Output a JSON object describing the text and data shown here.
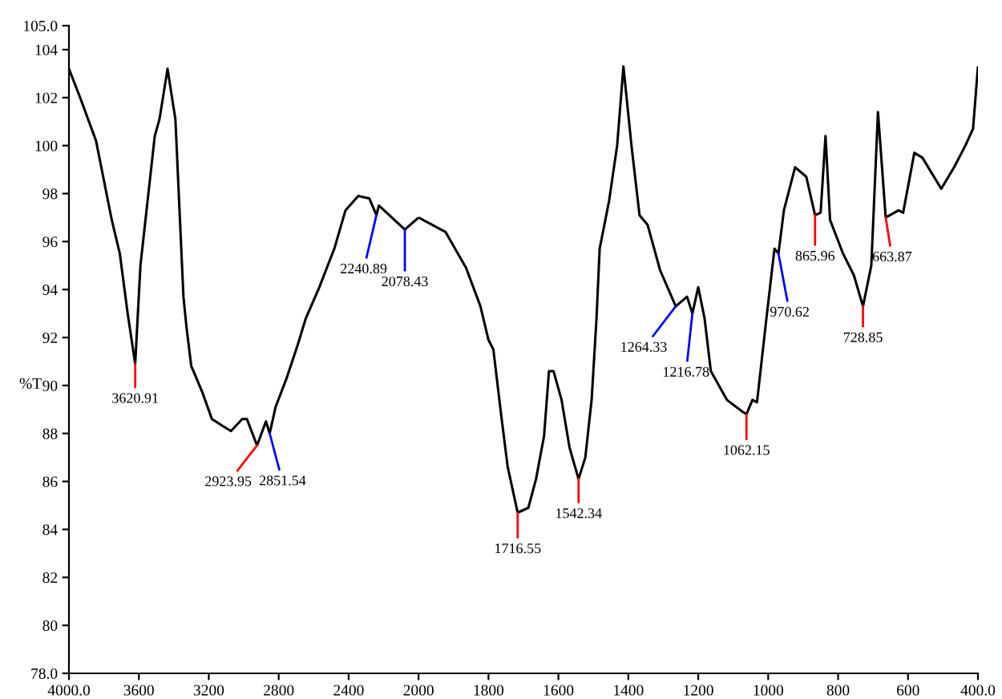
{
  "chart_data": [
    {
      "type": "line",
      "ylabel": "%T",
      "x": [
        4000,
        3936,
        3845,
        3755,
        3709,
        3664,
        3620.91,
        3591,
        3509,
        3482,
        3436,
        3391,
        3345,
        3327,
        3300,
        3282,
        3236,
        3182,
        3118,
        3073,
        3009,
        2982,
        2923.95,
        2873,
        2851.54,
        2818,
        2755,
        2691,
        2645,
        2573,
        2482,
        2418,
        2345,
        2282,
        2240.89,
        2227,
        2078.43,
        2000
      ],
      "series": [
        {
          "color": "#000000",
          "values": [
            103.2,
            102.0,
            100.2,
            96.9,
            95.5,
            93.0,
            90.9,
            95.0,
            100.4,
            101.1,
            103.2,
            101.1,
            93.7,
            92.4,
            90.8,
            90.5,
            89.7,
            88.6,
            88.3,
            88.1,
            88.6,
            88.6,
            87.5,
            88.5,
            88.0,
            89.1,
            90.3,
            91.7,
            92.8,
            94.0,
            95.7,
            97.3,
            97.9,
            97.8,
            97.1,
            97.5,
            96.5,
            97.0
          ]
        }
      ],
      "xlim": [
        4000,
        2000
      ],
      "xticks": [
        {
          "value": 4000,
          "label": "4000.0"
        },
        3600,
        3200,
        2800,
        2400,
        2000
      ],
      "ylim": [
        78,
        105
      ],
      "yticks": [
        {
          "value": 78,
          "label": "78.0"
        },
        80,
        82,
        84,
        86,
        88,
        90,
        92,
        94,
        96,
        98,
        100,
        102,
        104,
        {
          "value": 105,
          "label": "105.0"
        }
      ],
      "annotations": [
        {
          "text": "3620.91",
          "x": 3620.91,
          "y": 90.9
        },
        {
          "text": "2923.95",
          "x": 2923.95,
          "y": 87.5
        },
        {
          "text": "2851.54",
          "x": 2851.54,
          "y": 88.0
        },
        {
          "text": "2240.89",
          "x": 2240.89,
          "y": 97.1
        },
        {
          "text": "2078.43",
          "x": 2078.43,
          "y": 96.5
        }
      ]
    },
    {
      "type": "line",
      "x": [
        2000,
        1923,
        1864,
        1823,
        1800,
        1786,
        1764,
        1745,
        1716.55,
        1686,
        1664,
        1641,
        1627,
        1614,
        1591,
        1568,
        1542.34,
        1523,
        1505,
        1491,
        1482,
        1455,
        1432,
        1414,
        1391,
        1368,
        1345,
        1309,
        1264.33,
        1232,
        1216.78,
        1200,
        1182,
        1164,
        1118,
        1073,
        1062.15,
        1045,
        1032,
        1005,
        982,
        970.62,
        955,
        923,
        891,
        865.96,
        850,
        836,
        823,
        786,
        755,
        728.85,
        705,
        686,
        663.87,
        627,
        614,
        582,
        559,
        505,
        468,
        436,
        414,
        400
      ],
      "series": [
        {
          "color": "#000000",
          "values": [
            97.0,
            96.4,
            94.9,
            93.3,
            91.9,
            91.5,
            88.8,
            86.6,
            84.7,
            84.9,
            86.1,
            87.9,
            90.6,
            90.6,
            89.4,
            87.4,
            86.1,
            87.0,
            89.4,
            92.8,
            95.7,
            97.7,
            100.0,
            103.3,
            100.0,
            97.1,
            96.7,
            94.8,
            93.3,
            93.7,
            93.0,
            94.1,
            92.8,
            90.6,
            89.4,
            88.9,
            88.8,
            89.4,
            89.3,
            92.8,
            95.7,
            95.5,
            97.3,
            99.1,
            98.7,
            97.1,
            97.2,
            100.4,
            96.9,
            95.5,
            94.6,
            93.3,
            95.0,
            101.4,
            97.0,
            97.3,
            97.2,
            99.7,
            99.5,
            98.2,
            99.1,
            100.0,
            100.7,
            103.3
          ]
        }
      ],
      "xlim": [
        2000,
        400
      ],
      "xticks": [
        1800,
        1600,
        1400,
        1200,
        1000,
        800,
        600,
        {
          "value": 400,
          "label": "400.0"
        }
      ],
      "ylim": [
        78,
        105
      ],
      "tick_labels": "x",
      "annotations": [
        {
          "text": "1716.55",
          "x": 1716.55,
          "y": 84.7
        },
        {
          "text": "1542.34",
          "x": 1542.34,
          "y": 86.1
        },
        {
          "text": "1264.33",
          "x": 1264.33,
          "y": 93.3
        },
        {
          "text": "1216.78",
          "x": 1216.78,
          "y": 93.0
        },
        {
          "text": "1062.15",
          "x": 1062.15,
          "y": 88.8
        },
        {
          "text": "970.62",
          "x": 970.62,
          "y": 95.5
        },
        {
          "text": "865.96",
          "x": 865.96,
          "y": 97.1
        },
        {
          "text": "728.85",
          "x": 728.85,
          "y": 93.3
        },
        {
          "text": "663.87",
          "x": 663.87,
          "y": 97.0
        }
      ]
    }
  ]
}
